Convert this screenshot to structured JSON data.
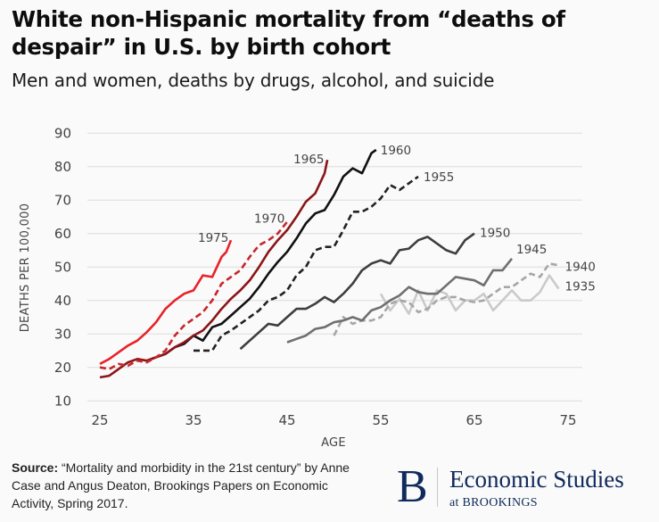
{
  "header": {
    "title": "White non-Hispanic mortality from “deaths of despair” in U.S. by birth cohort",
    "subtitle": "Men and women, deaths by drugs, alcohol, and suicide"
  },
  "footer": {
    "source_label": "Source:",
    "source_text": " “Mortality and morbidity in the 21st century” by Anne Case and Angus Deaton, Brookings Papers on Economic Activity, Spring 2017.",
    "brand_letter": "B",
    "brand_name": "Economic Studies",
    "brand_sub": "at BROOKINGS",
    "brand_color": "#0f2a5b"
  },
  "chart_data": {
    "type": "line",
    "title": "White non-Hispanic mortality from “deaths of despair” in U.S. by birth cohort",
    "subtitle": "Men and women, deaths by drugs, alcohol, and suicide",
    "xlabel": "AGE",
    "ylabel": "DEATHS PER 100,000",
    "xlim": [
      25,
      75
    ],
    "ylim": [
      10,
      90
    ],
    "xticks": [
      25,
      35,
      45,
      55,
      65,
      75
    ],
    "yticks": [
      10,
      20,
      30,
      40,
      50,
      60,
      70,
      80,
      90
    ],
    "grid": "horizontal",
    "legend": "inline labels at line ends",
    "series": [
      {
        "name": "1975",
        "color": "#e8222a",
        "dashed": false,
        "x": [
          25,
          26,
          27,
          28,
          29,
          30,
          31,
          32,
          33,
          34,
          35,
          36,
          37,
          38,
          38.5,
          39
        ],
        "y": [
          21,
          22.5,
          24.5,
          26.5,
          28,
          30.5,
          33.5,
          37.5,
          40,
          42,
          43,
          47.5,
          47,
          53,
          54.5,
          58
        ]
      },
      {
        "name": "1970",
        "color": "#c8262b",
        "dashed": true,
        "x": [
          25,
          26,
          27,
          28,
          29,
          30,
          31,
          32,
          33,
          34,
          35,
          36,
          37,
          38,
          39,
          40,
          41,
          42,
          43,
          44,
          45
        ],
        "y": [
          20,
          19.5,
          21,
          20.5,
          22,
          21.5,
          23,
          25,
          29.5,
          32.5,
          34.5,
          36.5,
          40,
          45,
          47,
          49,
          53,
          56.5,
          58,
          60,
          63.5
        ]
      },
      {
        "name": "1965",
        "color": "#8c1518",
        "dashed": false,
        "x": [
          25,
          26,
          27,
          28,
          29,
          30,
          31,
          32,
          33,
          34,
          35,
          36,
          37,
          38,
          39,
          40,
          41,
          42,
          43,
          44,
          45,
          46,
          47,
          48,
          49,
          49.3
        ],
        "y": [
          17,
          17.5,
          19.5,
          21.5,
          22.5,
          22,
          23,
          24,
          26,
          27.5,
          29.5,
          31,
          34,
          37.5,
          40.5,
          43,
          46,
          50,
          54.5,
          58,
          61,
          65,
          69.5,
          72,
          78,
          82
        ]
      },
      {
        "name": "1960",
        "color": "#111111",
        "dashed": false,
        "x": [
          30,
          31,
          32,
          33,
          34,
          35,
          36,
          37,
          38,
          39,
          40,
          41,
          42,
          43,
          44,
          45,
          46,
          47,
          48,
          49,
          50,
          51,
          52,
          53,
          54,
          54.5
        ],
        "y": [
          22,
          23,
          24,
          26,
          27,
          29.5,
          28,
          32,
          33,
          35.5,
          38,
          40.5,
          44,
          48,
          51.5,
          54.5,
          58.5,
          63,
          66,
          67,
          71.5,
          77,
          79.5,
          78,
          84,
          85
        ]
      },
      {
        "name": "1955",
        "color": "#222222",
        "dashed": true,
        "x": [
          35,
          36,
          37,
          38,
          39,
          40,
          41,
          42,
          43,
          44,
          45,
          46,
          47,
          48,
          49,
          50,
          51,
          52,
          53,
          54,
          55,
          56,
          57,
          58,
          59
        ],
        "y": [
          25,
          25,
          25,
          29.5,
          31,
          33,
          35,
          37,
          40,
          41,
          43,
          47.5,
          50,
          55,
          56,
          56,
          61,
          66.5,
          66.5,
          68,
          70.5,
          74.5,
          73,
          75,
          77
        ]
      },
      {
        "name": "1950",
        "color": "#3e3e3e",
        "dashed": false,
        "x": [
          40,
          41,
          42,
          43,
          44,
          45,
          46,
          47,
          48,
          49,
          50,
          51,
          52,
          53,
          54,
          55,
          56,
          57,
          58,
          59,
          60,
          61,
          62,
          63,
          64,
          64.5,
          65
        ],
        "y": [
          25.5,
          28,
          30.5,
          33,
          32.5,
          35,
          37.5,
          37.5,
          39,
          41,
          39.5,
          42,
          45,
          49,
          51,
          52,
          51,
          55,
          55.5,
          58,
          59,
          57,
          55,
          54,
          58,
          59,
          60
        ]
      },
      {
        "name": "1945",
        "color": "#6f6f6f",
        "dashed": false,
        "x": [
          45,
          46,
          47,
          48,
          49,
          50,
          51,
          52,
          53,
          54,
          55,
          56,
          57,
          58,
          59,
          60,
          61,
          62,
          63,
          64,
          65,
          66,
          67,
          68,
          69
        ],
        "y": [
          27.5,
          28.5,
          29.5,
          31.5,
          32,
          33.5,
          34,
          35,
          34,
          37,
          38,
          40,
          41.5,
          44,
          42.5,
          42,
          42,
          44.5,
          47,
          46.5,
          46,
          44.5,
          49,
          49,
          52.5
        ]
      },
      {
        "name": "1940",
        "color": "#a6a6a6",
        "dashed": true,
        "x": [
          50,
          51,
          52,
          53,
          54,
          55,
          56,
          57,
          58,
          59,
          60,
          61,
          62,
          63,
          64,
          65,
          66,
          67,
          68,
          69,
          70,
          71,
          72,
          73,
          74
        ],
        "y": [
          29.5,
          35,
          33,
          34,
          34,
          35,
          39,
          40,
          39.5,
          36.5,
          37.5,
          40,
          41,
          41,
          40,
          39.5,
          40,
          42,
          44,
          44,
          46,
          48,
          47,
          51,
          50.5
        ]
      },
      {
        "name": "1935",
        "color": "#cacaca",
        "dashed": false,
        "x": [
          55,
          56,
          57,
          58,
          59,
          60,
          61,
          62,
          63,
          64,
          65,
          66,
          67,
          68,
          69,
          70,
          71,
          72,
          73,
          74
        ],
        "y": [
          42,
          37,
          40.5,
          36,
          43,
          37,
          43,
          42,
          37,
          40,
          40,
          42,
          37,
          40,
          43,
          40,
          40,
          42.5,
          47.5,
          43.5
        ]
      }
    ]
  }
}
